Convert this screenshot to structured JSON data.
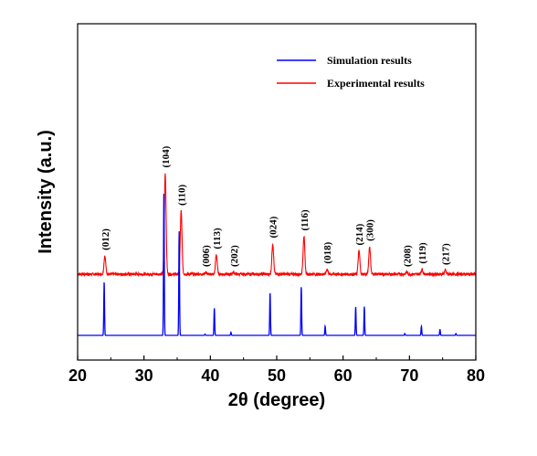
{
  "chart_data": {
    "type": "line",
    "xlabel": "2θ (degree)",
    "ylabel": "Intensity (a.u.)",
    "xlim": [
      20,
      80
    ],
    "x_ticks": [
      20,
      30,
      40,
      50,
      60,
      70,
      80
    ],
    "y_ticks_shown": false,
    "grid": false,
    "legend_position": "top-right",
    "legend": [
      {
        "name": "Simulation results",
        "color": "#0000ff"
      },
      {
        "name": "Experimental results",
        "color": "#ff0000"
      }
    ],
    "series": [
      {
        "name": "Experimental results",
        "color": "#ff0000",
        "baseline": 1.0,
        "peaks": [
          {
            "x": 24.1,
            "y": 1.3
          },
          {
            "x": 33.2,
            "y": 2.65
          },
          {
            "x": 35.6,
            "y": 2.03
          },
          {
            "x": 39.3,
            "y": 1.03
          },
          {
            "x": 40.9,
            "y": 1.32
          },
          {
            "x": 43.5,
            "y": 1.03
          },
          {
            "x": 49.4,
            "y": 1.5
          },
          {
            "x": 54.1,
            "y": 1.62
          },
          {
            "x": 57.6,
            "y": 1.08
          },
          {
            "x": 62.4,
            "y": 1.38
          },
          {
            "x": 64.0,
            "y": 1.45
          },
          {
            "x": 69.6,
            "y": 1.03
          },
          {
            "x": 71.9,
            "y": 1.08
          },
          {
            "x": 75.4,
            "y": 1.06
          }
        ]
      },
      {
        "name": "Simulation results",
        "color": "#0000ff",
        "baseline": 0.0,
        "peaks": [
          {
            "x": 24.0,
            "y": 0.88
          },
          {
            "x": 33.0,
            "y": 2.35
          },
          {
            "x": 35.3,
            "y": 1.7
          },
          {
            "x": 39.2,
            "y": 0.02
          },
          {
            "x": 40.6,
            "y": 0.45
          },
          {
            "x": 43.1,
            "y": 0.05
          },
          {
            "x": 49.0,
            "y": 0.7
          },
          {
            "x": 53.7,
            "y": 0.8
          },
          {
            "x": 57.3,
            "y": 0.15
          },
          {
            "x": 61.9,
            "y": 0.47
          },
          {
            "x": 63.2,
            "y": 0.47
          },
          {
            "x": 69.3,
            "y": 0.03
          },
          {
            "x": 71.8,
            "y": 0.15
          },
          {
            "x": 74.6,
            "y": 0.1
          },
          {
            "x": 77.0,
            "y": 0.03
          }
        ]
      }
    ],
    "annotations": [
      {
        "text": "(012)",
        "x": 24.1
      },
      {
        "text": "(104)",
        "x": 33.2
      },
      {
        "text": "(110)",
        "x": 35.6
      },
      {
        "text": "(006)",
        "x": 39.3
      },
      {
        "text": "(113)",
        "x": 40.9
      },
      {
        "text": "(202)",
        "x": 43.5
      },
      {
        "text": "(024)",
        "x": 49.4
      },
      {
        "text": "(116)",
        "x": 54.1
      },
      {
        "text": "(018)",
        "x": 57.6
      },
      {
        "text": "(214)",
        "x": 62.4
      },
      {
        "text": "(300)",
        "x": 64.0
      },
      {
        "text": "(208)",
        "x": 69.6
      },
      {
        "text": "(119)",
        "x": 71.9
      },
      {
        "text": "(217)",
        "x": 75.4
      }
    ]
  }
}
